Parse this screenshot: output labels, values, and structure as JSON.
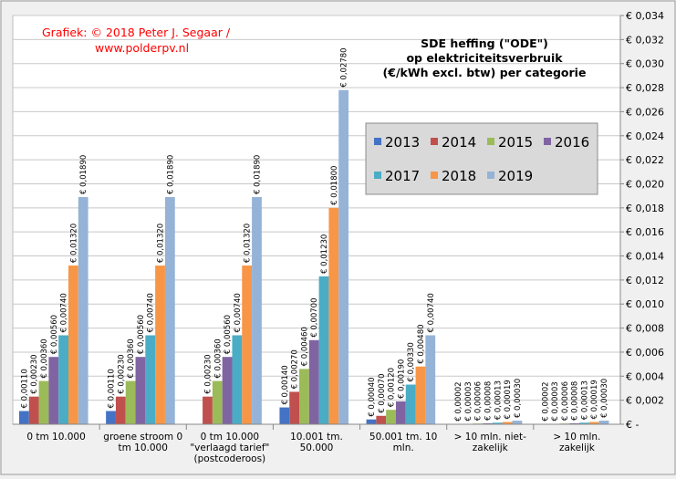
{
  "credit": [
    "Grafiek:  © 2018 Peter J. Segaar /",
    "www.polderpv.nl"
  ],
  "chart_data": {
    "type": "bar",
    "title": [
      "SDE heffing  (\"ODE\")",
      "op elektriciteitsverbruik",
      "(€/kWh  excl. btw) per categorie"
    ],
    "ylim": [
      0,
      0.034
    ],
    "ytick_step": 0.002,
    "ytick_labels": [
      "€ -",
      "€ 0,002",
      "€ 0,004",
      "€ 0,006",
      "€ 0,008",
      "€ 0,010",
      "€ 0,012",
      "€ 0,014",
      "€ 0,016",
      "€ 0,018",
      "€ 0,020",
      "€ 0,022",
      "€ 0,024",
      "€ 0,026",
      "€ 0,028",
      "€ 0,030",
      "€ 0,032",
      "€ 0,034"
    ],
    "grid": true,
    "legend_position": "right",
    "categories": [
      [
        "0 tm 10.000"
      ],
      [
        "groene stroom 0",
        "tm 10.000"
      ],
      [
        "0 tm 10.000",
        "\"verlaagd tarief\"",
        "(postcoderoos)"
      ],
      [
        "10.001 tm.",
        "50.000"
      ],
      [
        "50.001 tm. 10",
        "mln."
      ],
      [
        "> 10 mln. niet-",
        "zakelijk"
      ],
      [
        "> 10 mln.",
        "zakelijk"
      ]
    ],
    "series": [
      {
        "name": "2013",
        "color": "#4472c4",
        "values": [
          0.0011,
          0.0011,
          0,
          0.0014,
          0.0004,
          2e-05,
          2e-05
        ],
        "labels": [
          "€ 0,00110",
          "€ 0,00110",
          "",
          "€ 0,00140",
          "€ 0,00040",
          "€ 0,00002",
          "€ 0,00002"
        ]
      },
      {
        "name": "2014",
        "color": "#c0504d",
        "values": [
          0.0023,
          0.0023,
          0.0023,
          0.0027,
          0.0007,
          3e-05,
          3e-05
        ],
        "labels": [
          "€ 0,00230",
          "€ 0,00230",
          "€ 0,00230",
          "€ 0,00270",
          "€ 0,00070",
          "€ 0,00003",
          "€ 0,00003"
        ]
      },
      {
        "name": "2015",
        "color": "#9bbb59",
        "values": [
          0.0036,
          0.0036,
          0.0036,
          0.0046,
          0.0012,
          6e-05,
          6e-05
        ],
        "labels": [
          "€ 0,00360",
          "€ 0,00360",
          "€ 0,00360",
          "€ 0,00460",
          "€ 0,00120",
          "€ 0,00006",
          "€ 0,00006"
        ]
      },
      {
        "name": "2016",
        "color": "#8064a2",
        "values": [
          0.0056,
          0.0056,
          0.0056,
          0.007,
          0.0019,
          8e-05,
          8e-05
        ],
        "labels": [
          "€ 0,00560",
          "€ 0,00560",
          "€ 0,00560",
          "€ 0,00700",
          "€ 0,00190",
          "€ 0,00008",
          "€ 0,00008"
        ]
      },
      {
        "name": "2017",
        "color": "#4bacc6",
        "values": [
          0.0074,
          0.0074,
          0.0074,
          0.0123,
          0.0033,
          0.00013,
          0.00013
        ],
        "labels": [
          "€ 0,00740",
          "€ 0,00740",
          "€ 0,00740",
          "€ 0,01230",
          "€ 0,00330",
          "€ 0,00013",
          "€ 0,00013"
        ]
      },
      {
        "name": "2018",
        "color": "#f79646",
        "values": [
          0.0132,
          0.0132,
          0.0132,
          0.018,
          0.0048,
          0.00019,
          0.00019
        ],
        "labels": [
          "€ 0,01320",
          "€ 0,01320",
          "€ 0,01320",
          "€ 0,01800",
          "€ 0,00480",
          "€ 0,00019",
          "€ 0,00019"
        ]
      },
      {
        "name": "2019",
        "color": "#95b3d7",
        "values": [
          0.0189,
          0.0189,
          0.0189,
          0.0278,
          0.0074,
          0.0003,
          0.0003
        ],
        "labels": [
          "€ 0,01890",
          "€ 0,01890",
          "€ 0,01890",
          "€ 0,02780",
          "€ 0,00740",
          "€ 0,00030",
          "€ 0,00030"
        ]
      }
    ]
  }
}
